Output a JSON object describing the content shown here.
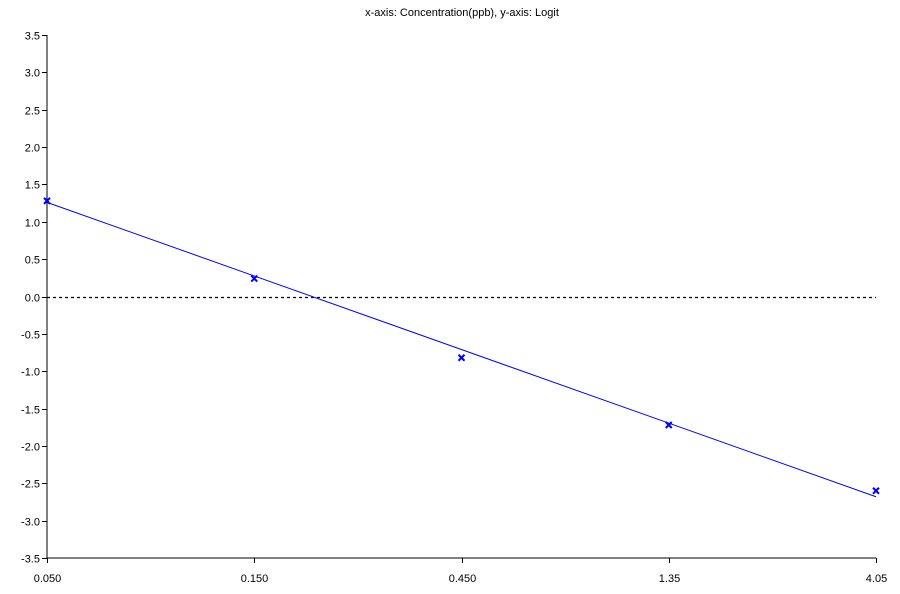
{
  "chart_data": {
    "type": "scatter",
    "title": "x-axis: Concentration(ppb), y-axis: Logit",
    "xlabel": "",
    "ylabel": "",
    "x_scale": "log",
    "x_ticks": [
      0.05,
      0.15,
      0.45,
      1.35,
      4.05
    ],
    "x_tick_labels": [
      "0.050",
      "0.150",
      "0.450",
      "1.35",
      "4.05"
    ],
    "y_ticks": [
      -3.5,
      -3.0,
      -2.5,
      -2.0,
      -1.5,
      -1.0,
      -0.5,
      0.0,
      0.5,
      1.0,
      1.5,
      2.0,
      2.5,
      3.0,
      3.5
    ],
    "y_tick_labels": [
      "-3.5",
      "-3.0",
      "-2.5",
      "-2.0",
      "-1.5",
      "-1.0",
      "-0.5",
      "0.0",
      "0.5",
      "1.0",
      "1.5",
      "2.0",
      "2.5",
      "3.0",
      "3.5"
    ],
    "ylim": [
      -3.5,
      3.5
    ],
    "xlim": [
      0.05,
      4.05
    ],
    "grid": false,
    "series": [
      {
        "x": [
          0.05,
          0.15,
          0.45,
          1.35,
          4.05
        ],
        "y": [
          1.28,
          0.24,
          -0.82,
          -1.72,
          -2.6
        ],
        "marker": "x",
        "color": "#0000ff"
      }
    ],
    "fit_line": {
      "x": [
        0.05,
        4.05
      ],
      "y": [
        1.26,
        -2.68
      ],
      "color": "#0000ff"
    },
    "reference_line": {
      "y": 0.0,
      "style": "dashed",
      "color": "#000000"
    }
  }
}
